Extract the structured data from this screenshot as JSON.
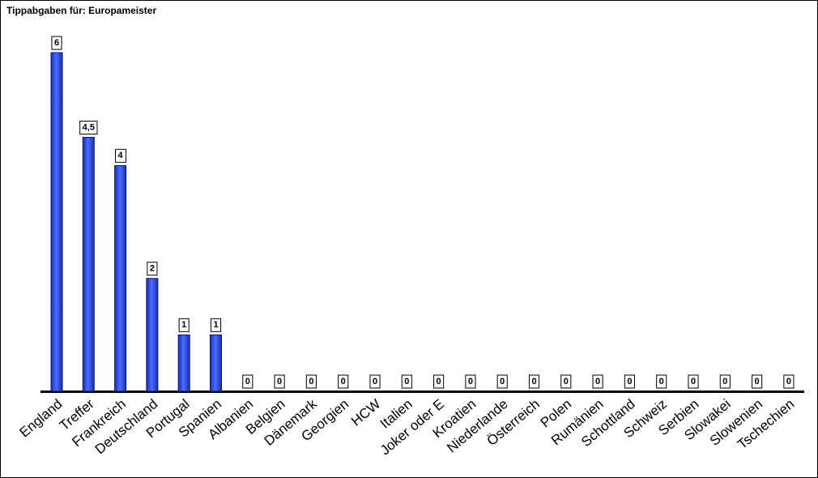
{
  "chart_data": {
    "type": "bar",
    "title": "Tippabgaben für: Europameister",
    "categories": [
      "England",
      "Treffer",
      "Frankreich",
      "Deutschland",
      "Portugal",
      "Spanien",
      "Albanien",
      "Belgien",
      "Dänemark",
      "Georgien",
      "HCW",
      "Italien",
      "Joker oder E",
      "Kroatien",
      "Niederlande",
      "Österreich",
      "Polen",
      "Rumänien",
      "Schottland",
      "Schweiz",
      "Serbien",
      "Slowakei",
      "Slowenien",
      "Tschechien"
    ],
    "values": [
      6,
      4.5,
      4,
      2,
      1,
      1,
      0,
      0,
      0,
      0,
      0,
      0,
      0,
      0,
      0,
      0,
      0,
      0,
      0,
      0,
      0,
      0,
      0,
      0
    ],
    "value_labels": [
      "6",
      "4,5",
      "4",
      "2",
      "1",
      "1",
      "0",
      "0",
      "0",
      "0",
      "0",
      "0",
      "0",
      "0",
      "0",
      "0",
      "0",
      "0",
      "0",
      "0",
      "0",
      "0",
      "0",
      "0"
    ],
    "color": "#2f4fe8"
  }
}
